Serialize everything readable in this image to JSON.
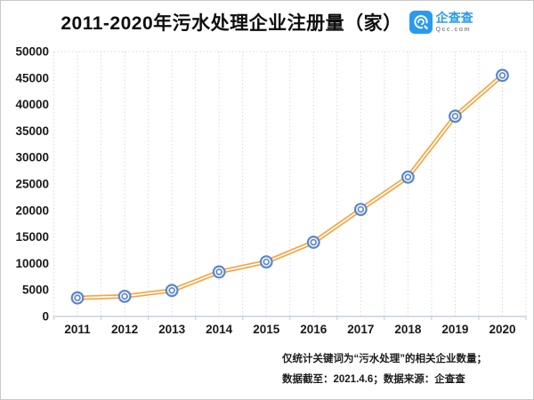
{
  "header": {
    "title": "2011-2020年污水处理企业注册量（家）",
    "logo": {
      "brand": "企查查",
      "domain": "Qcc.com",
      "brand_color": "#2a9aef"
    }
  },
  "chart_data": {
    "type": "line",
    "title": "2011-2020年污水处理企业注册量（家）",
    "categories": [
      "2011",
      "2012",
      "2013",
      "2014",
      "2015",
      "2016",
      "2017",
      "2018",
      "2019",
      "2020"
    ],
    "values": [
      3500,
      3800,
      4900,
      8400,
      10300,
      14000,
      20200,
      26300,
      37800,
      45500
    ],
    "series_name": "污水处理企业注册量",
    "unit": "家",
    "xlabel": "",
    "ylabel": "",
    "ylim": [
      0,
      50000
    ],
    "y_ticks": [
      0,
      5000,
      10000,
      15000,
      20000,
      25000,
      30000,
      35000,
      40000,
      45000,
      50000
    ],
    "grid": "vertical-dotted",
    "legend": "none",
    "line_color": "#f6a33f",
    "line_inner_color": "#ffffff",
    "marker_color": "#5b86cc",
    "marker_fill": "#ffffff",
    "grid_color": "#d9d9d9",
    "axis_color": "#c7d0de",
    "tick_label_color": "#1a1a1a"
  },
  "footer": {
    "note1": "仅统计关键词为“污水处理”的相关企业数量；",
    "note2": "数据截至：2021.4.6；数据来源：企查查"
  }
}
